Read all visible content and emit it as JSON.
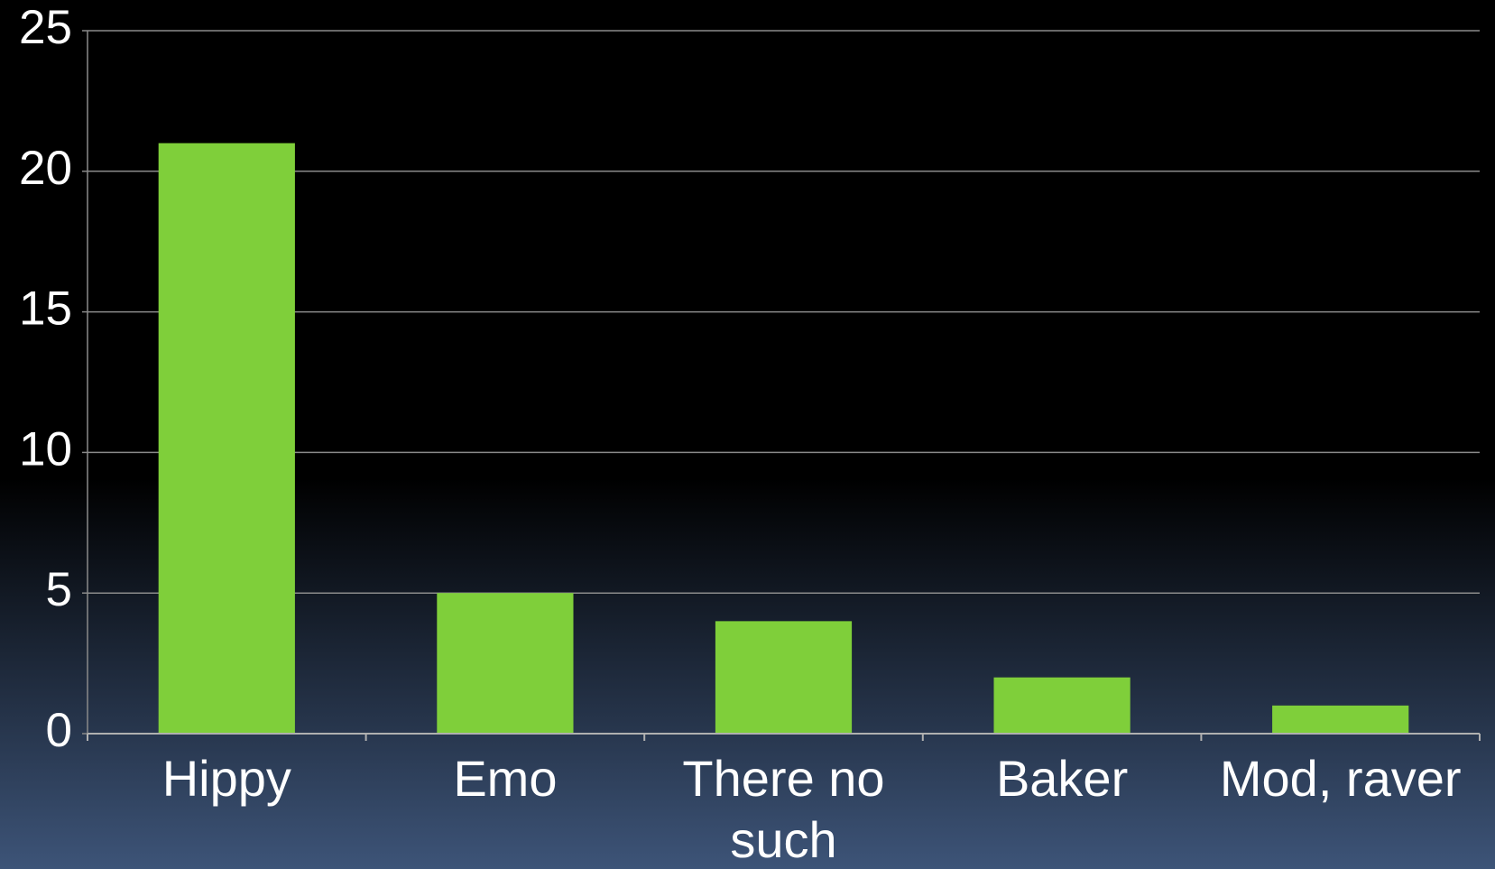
{
  "chart_data": {
    "type": "bar",
    "categories": [
      "Hippy",
      "Emo",
      "There no such",
      "Baker",
      "Mod, raver"
    ],
    "values": [
      21,
      5,
      4,
      2,
      1
    ],
    "color": "#7fcf3a",
    "ylim": [
      0,
      25
    ],
    "yticks": [
      0,
      5,
      10,
      15,
      20,
      25
    ],
    "grid": true
  }
}
